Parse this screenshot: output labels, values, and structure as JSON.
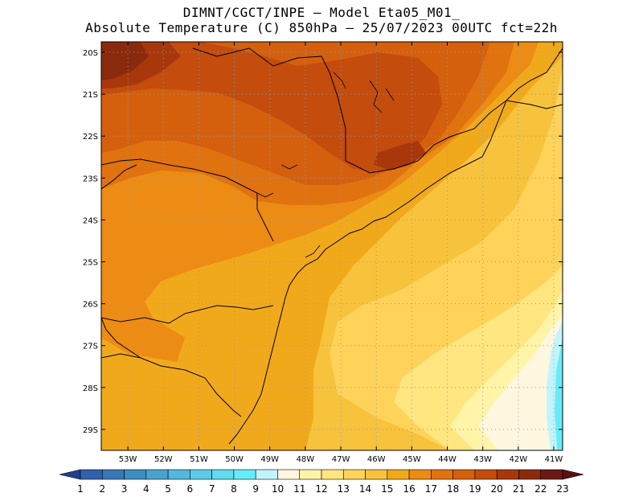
{
  "title": {
    "line1": "DIMNT/CGCT/INPE –  Model Eta05_M01_",
    "line2": "Absolute Temperature (C) 850hPa –  25/07/2023 00UTC fct=22h"
  },
  "map": {
    "lon_range": [
      -53.75,
      -40.75
    ],
    "lat_range": [
      -29.5,
      -19.75
    ],
    "lat_ticks": [
      "20S",
      "21S",
      "22S",
      "23S",
      "24S",
      "25S",
      "26S",
      "27S",
      "28S",
      "29S"
    ],
    "lon_ticks": [
      "53W",
      "52W",
      "51W",
      "50W",
      "49W",
      "48W",
      "47W",
      "46W",
      "45W",
      "44W",
      "43W",
      "42W",
      "41W"
    ],
    "grid": "dotted"
  },
  "colorbar": {
    "labels": [
      "1",
      "2",
      "3",
      "4",
      "5",
      "6",
      "7",
      "8",
      "9",
      "10",
      "11",
      "12",
      "13",
      "14",
      "15",
      "16",
      "17",
      "18",
      "19",
      "20",
      "21",
      "22",
      "23"
    ],
    "colors": [
      "#1f3f8f",
      "#2f62a8",
      "#3878b4",
      "#3f8cc0",
      "#4aa3cf",
      "#52b8dc",
      "#5ccae6",
      "#62dbee",
      "#66ecf8",
      "#c4f4fb",
      "#fff7e0",
      "#fff4a8",
      "#ffe680",
      "#ffd35a",
      "#f7c23c",
      "#f1a91c",
      "#ec8c14",
      "#e07210",
      "#d4600e",
      "#c44c0c",
      "#a8380c",
      "#8a2a0c",
      "#6a1a14",
      "#5a1010"
    ]
  }
}
